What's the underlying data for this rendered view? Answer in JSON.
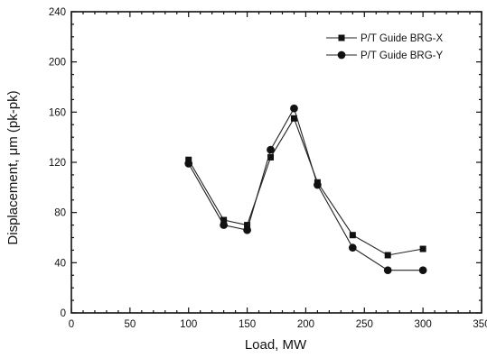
{
  "chart_data": {
    "type": "line",
    "title": "",
    "xlabel": "Load, MW",
    "ylabel": "Displacement, μm (pk-pk)",
    "xlim": [
      0,
      350
    ],
    "ylim": [
      0,
      240
    ],
    "xticks": [
      0,
      50,
      100,
      150,
      200,
      250,
      300,
      350
    ],
    "yticks": [
      0,
      40,
      80,
      120,
      160,
      200,
      240
    ],
    "x_minor_step": 10,
    "y_minor_step": 10,
    "grid": false,
    "legend_position": "top-right",
    "x": [
      100,
      130,
      150,
      170,
      190,
      210,
      240,
      270,
      300
    ],
    "series": [
      {
        "name": "P/T Guide BRG-X",
        "marker": "square",
        "color": "#111111",
        "values": [
          122,
          74,
          70,
          124,
          155,
          104,
          62,
          46,
          51
        ]
      },
      {
        "name": "P/T Guide BRG-Y",
        "marker": "circle",
        "color": "#111111",
        "values": [
          119,
          70,
          66,
          130,
          163,
          102,
          52,
          34,
          34
        ]
      }
    ]
  }
}
